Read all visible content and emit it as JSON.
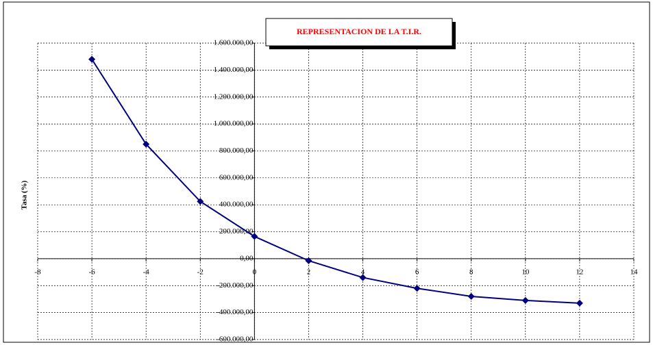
{
  "chart_data": {
    "type": "line",
    "title": "REPRESENTACION DE LA T.I.R.",
    "y_label": "Tasa (%)",
    "x": [
      -6,
      -4,
      -2,
      0,
      2,
      4,
      6,
      8,
      10,
      12
    ],
    "series": [
      {
        "name": "TIR",
        "color": "#000080",
        "values": [
          1480000,
          850000,
          425000,
          165000,
          -15000,
          -140000,
          -220000,
          -280000,
          -310000,
          -330000
        ]
      }
    ],
    "xlim": [
      -8,
      14
    ],
    "xticks": [
      -8,
      -6,
      -4,
      -2,
      0,
      2,
      4,
      6,
      8,
      10,
      12,
      14
    ],
    "ylim": [
      -600000,
      1600000
    ],
    "yticks": [
      {
        "value": -600000,
        "label": "-600.000,00"
      },
      {
        "value": -400000,
        "label": "-400.000,00"
      },
      {
        "value": -200000,
        "label": "-200.000,00"
      },
      {
        "value": 0,
        "label": "0,00"
      },
      {
        "value": 200000,
        "label": "200.000,00"
      },
      {
        "value": 400000,
        "label": "400.000,00"
      },
      {
        "value": 600000,
        "label": "600.000,00"
      },
      {
        "value": 800000,
        "label": "800.000,00"
      },
      {
        "value": 1000000,
        "label": "1.000.000,00"
      },
      {
        "value": 1200000,
        "label": "1.200.000,00"
      },
      {
        "value": 1400000,
        "label": "1.400.000,00"
      },
      {
        "value": 1600000,
        "label": "1.600.000,00"
      }
    ],
    "grid": true
  }
}
